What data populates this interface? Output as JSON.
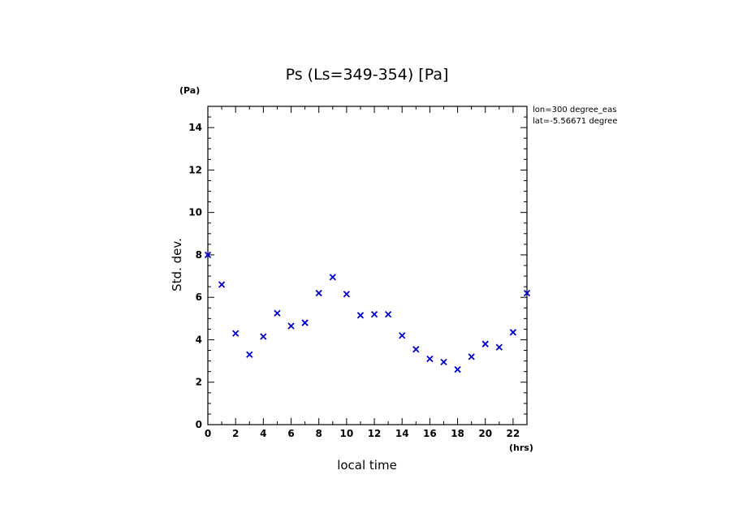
{
  "chart_data": {
    "type": "scatter",
    "title": "Ps (Ls=349-354) [Pa]",
    "xlabel": "local time",
    "ylabel": "Std. dev.",
    "x_unit": "(hrs)",
    "y_unit": "(Pa)",
    "xlim": [
      0,
      23
    ],
    "ylim": [
      0,
      15
    ],
    "x_ticks": [
      "0",
      "2",
      "4",
      "6",
      "8",
      "10",
      "12",
      "14",
      "16",
      "18",
      "20",
      "22"
    ],
    "y_ticks": [
      "0",
      "2",
      "4",
      "6",
      "8",
      "10",
      "12",
      "14"
    ],
    "annotations": [
      "lon=300 degree_eas",
      "lat=-5.56671 degree"
    ],
    "marker": "x",
    "color": "#0000cc",
    "x": [
      0,
      1,
      2,
      3,
      4,
      5,
      6,
      7,
      8,
      9,
      10,
      11,
      12,
      13,
      14,
      15,
      16,
      17,
      18,
      19,
      20,
      21,
      22,
      23
    ],
    "y": [
      8.0,
      6.6,
      4.3,
      3.3,
      4.15,
      5.25,
      4.65,
      4.8,
      6.2,
      6.95,
      6.15,
      5.15,
      5.2,
      5.2,
      4.2,
      3.55,
      3.1,
      2.95,
      2.6,
      3.2,
      3.8,
      3.65,
      4.35,
      6.2
    ]
  }
}
